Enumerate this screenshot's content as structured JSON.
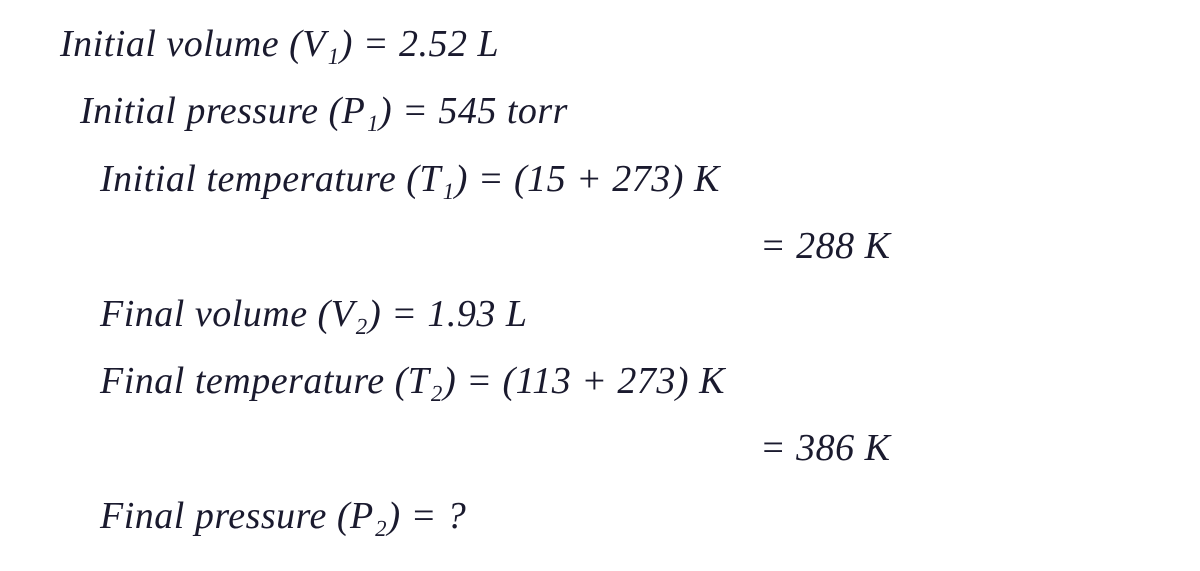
{
  "text_color": "#1a1a2e",
  "background_color": "#ffffff",
  "font_family": "Segoe Script, Comic Sans MS, cursive",
  "base_fontsize": 38,
  "lines": {
    "l1": "Initial volume (V₁) = 2.52 L",
    "l2": "Initial pressure (P₁) = 545 torr",
    "l3": "Initial temperature (T₁) = (15 + 273) K",
    "l4": "= 288 K",
    "l5": "Final volume (V₂) = 1.93 L",
    "l6": "Final temperature (T₂) = (113 + 273) K",
    "l7": "= 386 K",
    "l8": "Final pressure (P₂) = ?"
  },
  "variables": {
    "V1": {
      "label": "Initial volume",
      "symbol": "V₁",
      "value": 2.52,
      "unit": "L"
    },
    "P1": {
      "label": "Initial pressure",
      "symbol": "P₁",
      "value": 545,
      "unit": "torr"
    },
    "T1": {
      "label": "Initial temperature",
      "symbol": "T₁",
      "expression": "(15 + 273)",
      "value": 288,
      "unit": "K"
    },
    "V2": {
      "label": "Final volume",
      "symbol": "V₂",
      "value": 1.93,
      "unit": "L"
    },
    "T2": {
      "label": "Final temperature",
      "symbol": "T₂",
      "expression": "(113 + 273)",
      "value": 386,
      "unit": "K"
    },
    "P2": {
      "label": "Final pressure",
      "symbol": "P₂",
      "value": "?",
      "unit": ""
    }
  }
}
